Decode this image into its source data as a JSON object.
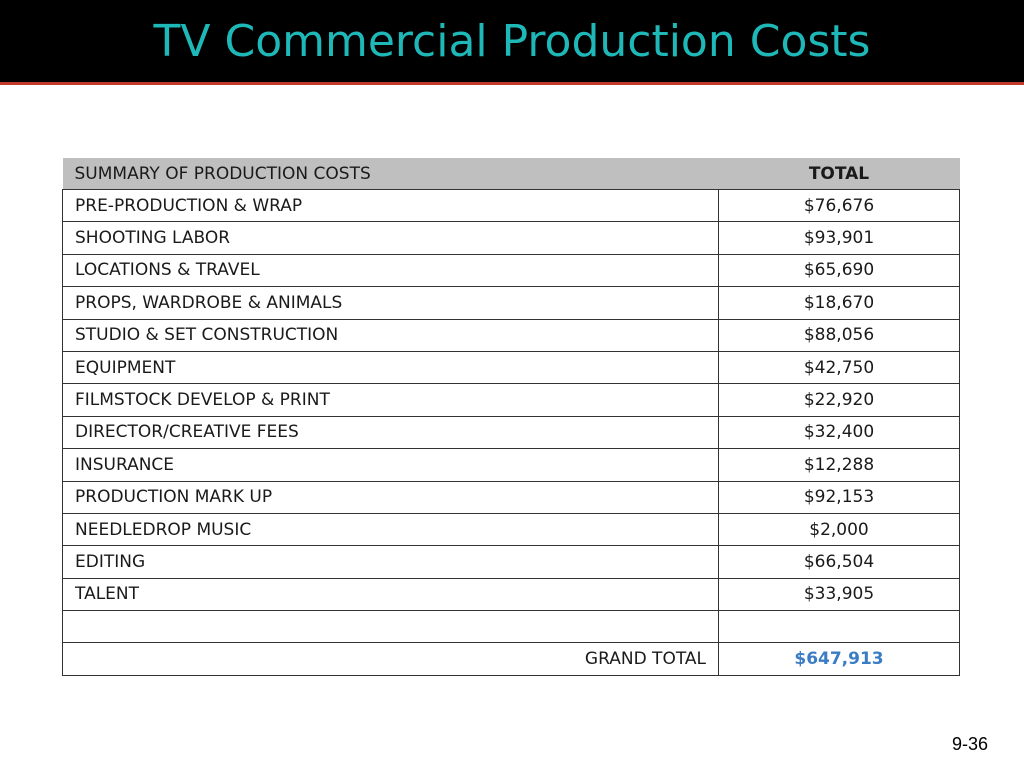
{
  "slide": {
    "title": "TV Commercial Production Costs",
    "page_number": "9-36"
  },
  "table": {
    "header": {
      "label": "SUMMARY OF  PRODUCTION COSTS",
      "total": "TOTAL"
    },
    "rows": [
      {
        "label": "PRE-PRODUCTION & WRAP",
        "amount": "$76,676"
      },
      {
        "label": "SHOOTING LABOR",
        "amount": "$93,901"
      },
      {
        "label": "LOCATIONS & TRAVEL",
        "amount": "$65,690"
      },
      {
        "label": "PROPS, WARDROBE & ANIMALS",
        "amount": "$18,670"
      },
      {
        "label": "STUDIO & SET CONSTRUCTION",
        "amount": "$88,056"
      },
      {
        "label": "EQUIPMENT",
        "amount": "$42,750"
      },
      {
        "label": "FILMSTOCK DEVELOP & PRINT",
        "amount": "$22,920"
      },
      {
        "label": "DIRECTOR/CREATIVE FEES",
        "amount": "$32,400"
      },
      {
        "label": "INSURANCE",
        "amount": "$12,288"
      },
      {
        "label": "PRODUCTION MARK UP",
        "amount": "$92,153"
      },
      {
        "label": "NEEDLEDROP MUSIC",
        "amount": "$2,000"
      },
      {
        "label": "EDITING",
        "amount": "$66,504"
      },
      {
        "label": "TALENT",
        "amount": "$33,905"
      }
    ],
    "grand_total": {
      "label": "GRAND TOTAL",
      "amount": "$647,913"
    }
  },
  "colors": {
    "title_text": "#1fb8b8",
    "title_bar": "#000000",
    "title_underline": "#c0392b",
    "header_fill": "#bfbfbf",
    "grand_total_value": "#3a7dc4"
  }
}
